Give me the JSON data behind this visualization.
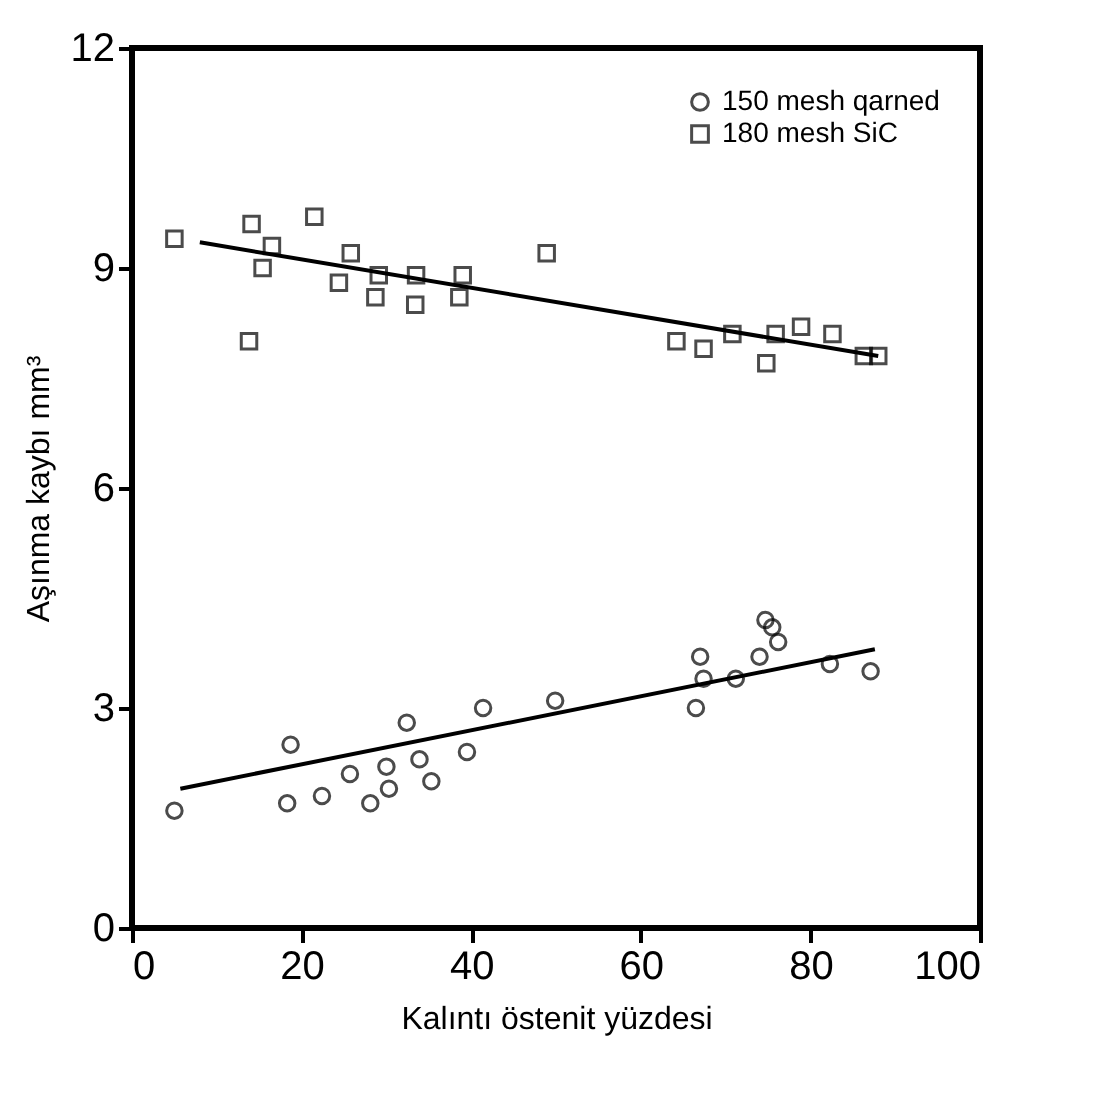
{
  "chart_data": {
    "type": "scatter",
    "xlabel": "Kalıntı östenit yüzdesi",
    "ylabel": "Aşınma kaybı mm³",
    "xlim": [
      0,
      100
    ],
    "ylim": [
      0,
      12
    ],
    "xticks": [
      0,
      20,
      40,
      60,
      80,
      100
    ],
    "yticks": [
      0,
      3,
      6,
      9,
      12
    ],
    "grid": false,
    "legend": "top right",
    "series": [
      {
        "name": "150 mesh qarned",
        "color": "#000000",
        "marker": "circle",
        "x": [
          5.0,
          18.3,
          18.7,
          22.4,
          25.7,
          28.1,
          30.0,
          30.3,
          32.4,
          33.9,
          35.3,
          39.5,
          41.4,
          49.9,
          66.5,
          67.0,
          67.4,
          71.2,
          74.0,
          74.7,
          75.5,
          76.2,
          82.3,
          87.1
        ],
        "values": [
          1.6,
          1.7,
          2.5,
          1.8,
          2.1,
          1.7,
          2.2,
          1.9,
          2.8,
          2.3,
          2.0,
          2.4,
          3.0,
          3.1,
          3.0,
          3.7,
          3.4,
          3.4,
          3.7,
          4.2,
          4.1,
          3.9,
          3.6,
          3.5
        ]
      },
      {
        "name": "180 mesh SiC",
        "color": "#000000",
        "marker": "square",
        "x": [
          5.0,
          14.1,
          13.8,
          16.5,
          15.4,
          21.5,
          25.8,
          24.4,
          29.1,
          28.7,
          33.5,
          33.4,
          39.0,
          38.6,
          48.9,
          64.2,
          67.4,
          70.8,
          75.9,
          74.8,
          78.9,
          82.6,
          86.3,
          88.0
        ],
        "values": [
          9.4,
          9.6,
          8.0,
          9.3,
          9.0,
          9.7,
          9.2,
          8.8,
          8.9,
          8.6,
          8.9,
          8.5,
          8.9,
          8.6,
          9.2,
          8.0,
          7.9,
          8.1,
          8.1,
          7.7,
          8.2,
          8.1,
          7.8,
          7.8
        ]
      },
      {
        "type": "line",
        "color": "#000000",
        "x": [
          5.7,
          87.6
        ],
        "values": [
          1.9,
          3.8
        ]
      },
      {
        "type": "line",
        "color": "#000000",
        "x": [
          8,
          88
        ],
        "values": [
          9.35,
          7.8
        ]
      }
    ]
  }
}
